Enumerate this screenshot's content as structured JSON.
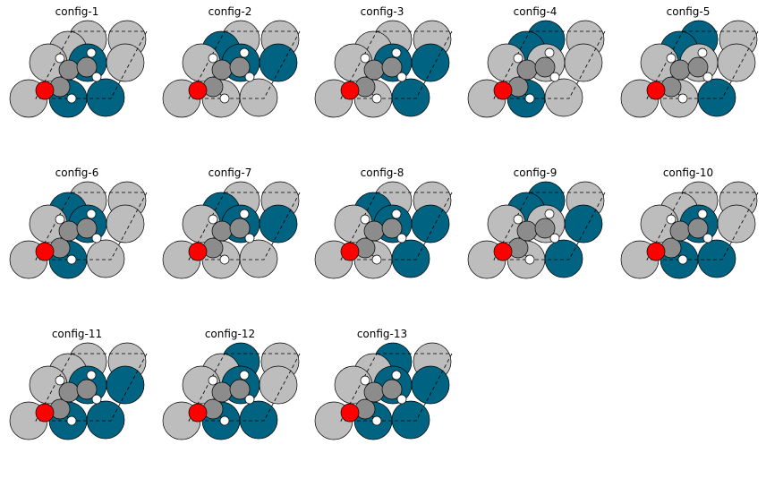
{
  "figure": {
    "colors": {
      "surface": "#bdbdbd",
      "highlight": "#006382",
      "carbon": "#8c8c8c",
      "oxygen": "#ff0000",
      "hydrogen": "#ffffff",
      "outline": "#000000"
    },
    "panels": [
      {
        "title": "config-1",
        "highlighted": [
          6,
          7,
          8
        ]
      },
      {
        "title": "config-2",
        "highlighted": [
          2,
          5,
          7
        ]
      },
      {
        "title": "config-3",
        "highlighted": [
          5,
          7,
          8
        ]
      },
      {
        "title": "config-4",
        "highlighted": [
          1,
          2,
          6
        ]
      },
      {
        "title": "config-5",
        "highlighted": [
          1,
          2,
          8
        ]
      },
      {
        "title": "config-6",
        "highlighted": [
          2,
          6,
          7
        ]
      },
      {
        "title": "config-7",
        "highlighted": [
          2,
          5,
          7
        ]
      },
      {
        "title": "config-8",
        "highlighted": [
          2,
          5,
          7,
          8
        ]
      },
      {
        "title": "config-9",
        "highlighted": [
          1,
          2,
          5,
          8
        ]
      },
      {
        "title": "config-10",
        "highlighted": [
          6,
          7,
          8
        ]
      },
      {
        "title": "config-11",
        "highlighted": [
          5,
          6,
          7,
          8
        ]
      },
      {
        "title": "config-12",
        "highlighted": [
          1,
          6,
          7,
          8
        ]
      },
      {
        "title": "config-13",
        "highlighted": [
          1,
          5,
          6,
          7,
          8
        ]
      }
    ]
  }
}
